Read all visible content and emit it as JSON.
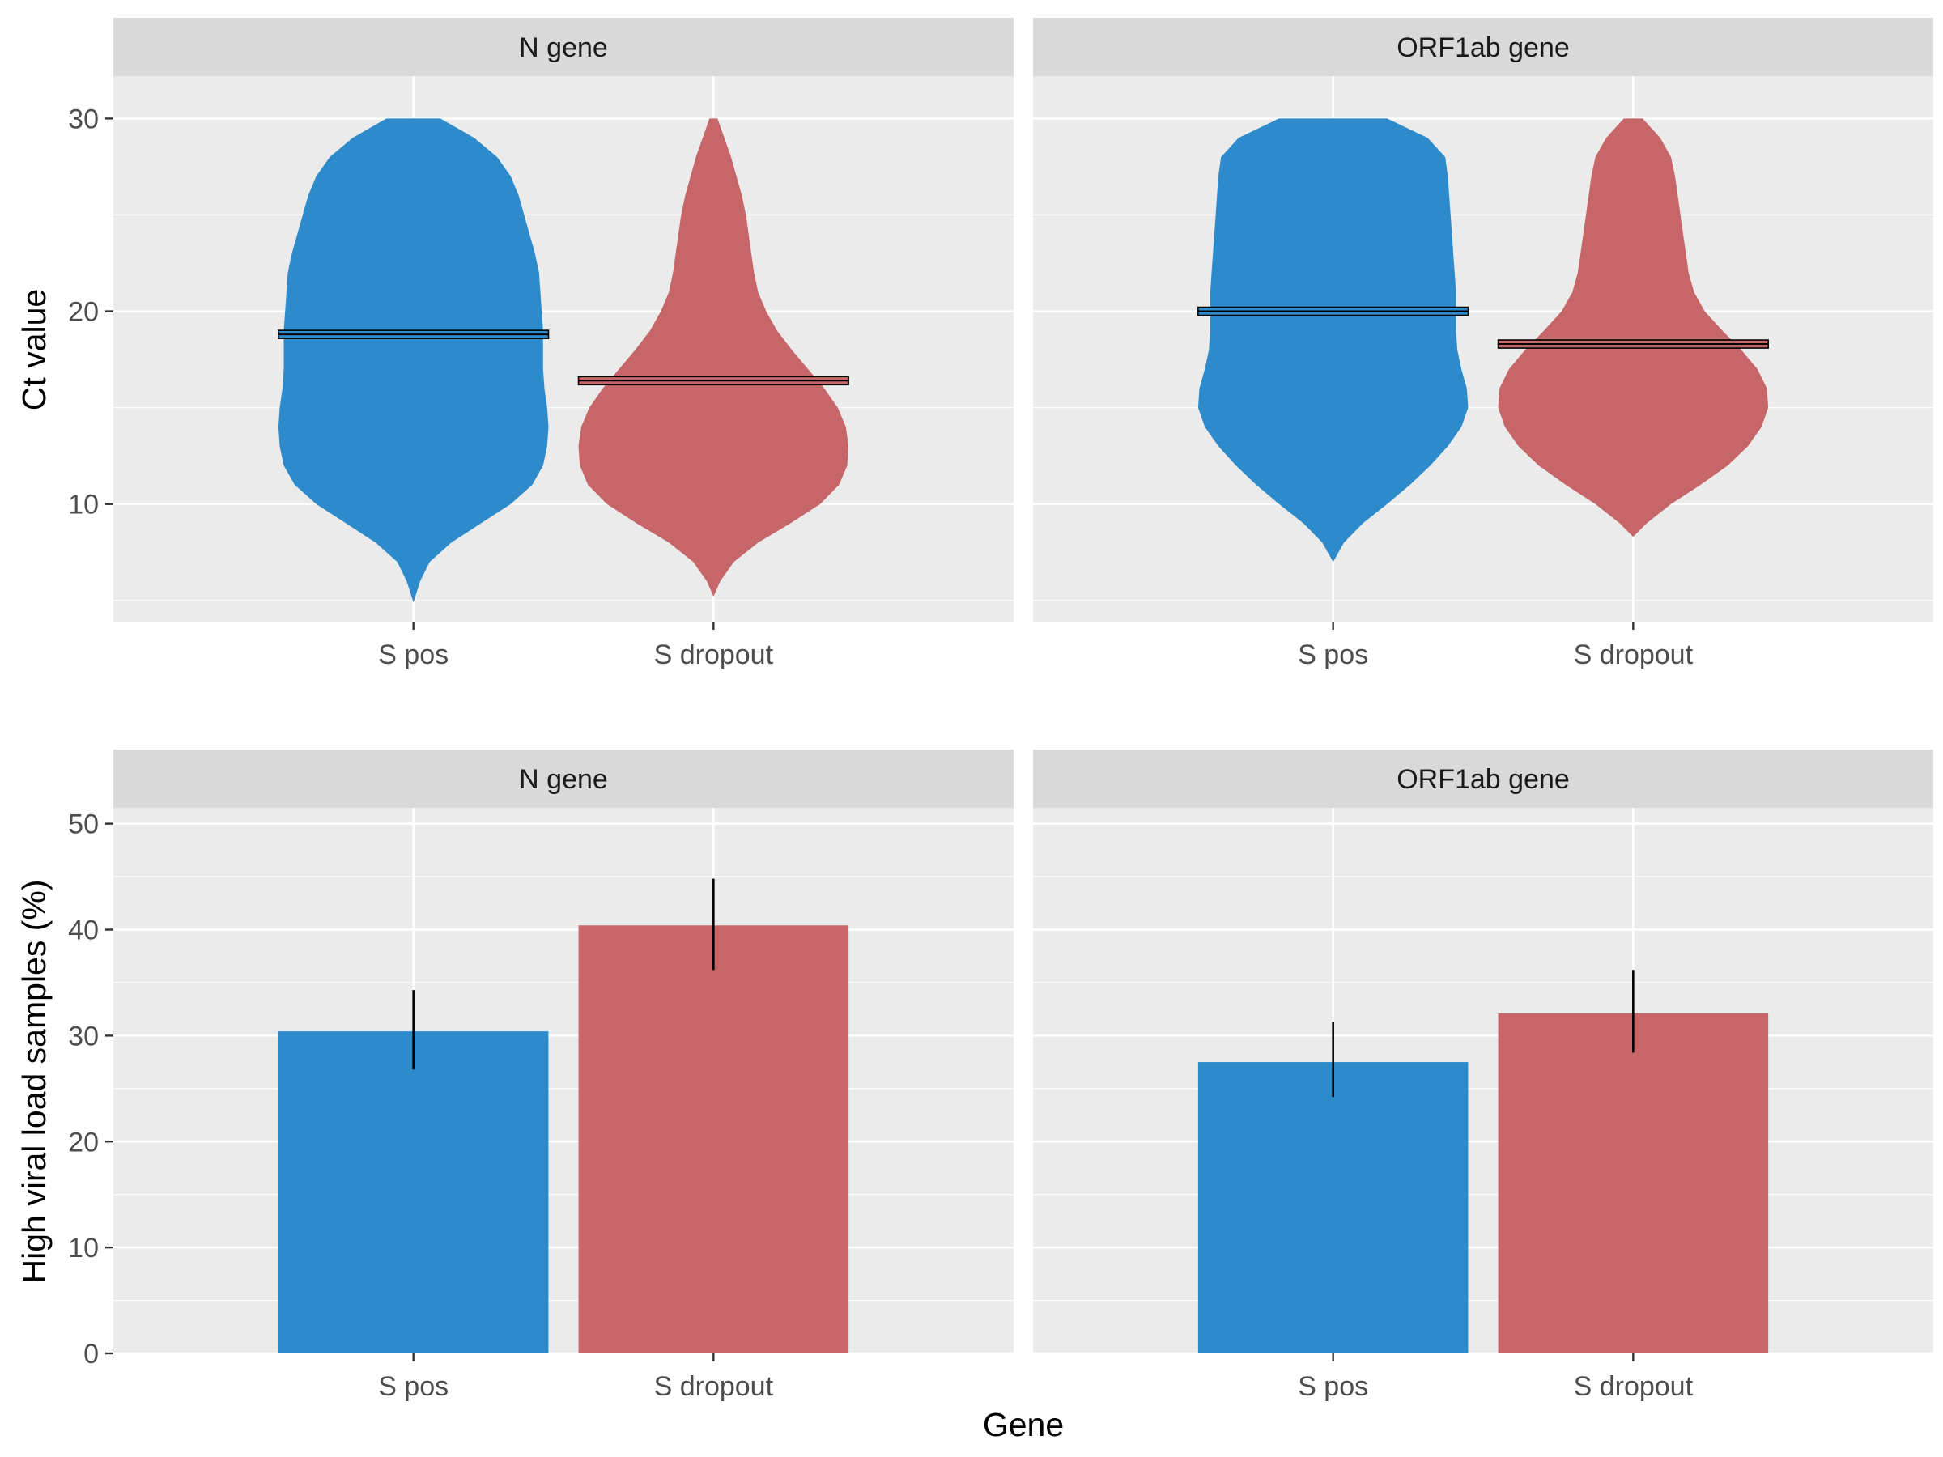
{
  "axes": {
    "x_title": "Gene",
    "top_y_title": "Ct value",
    "bottom_y_title": "High viral load samples (%)"
  },
  "colors": {
    "S pos": "#2e8bcb",
    "S dropout": "#c66668",
    "panel_bg": "#ebebeb",
    "strip_bg": "#d9d9d9",
    "gridline": "#ffffff"
  },
  "chart_data": [
    {
      "type": "violin",
      "facets": [
        "N gene",
        "ORF1ab gene"
      ],
      "categories": [
        "S pos",
        "S dropout"
      ],
      "ylabel": "Ct value",
      "xlabel": "",
      "ylim": [
        3.9,
        32.2
      ],
      "yticks": [
        10,
        20,
        30
      ],
      "grid": true,
      "panels": [
        {
          "facet": "N gene",
          "violins": [
            {
              "category": "S pos",
              "median": 18.8,
              "profile": [
                [
                  4.9,
                  0
                ],
                [
                  6,
                  0.05
                ],
                [
                  7,
                  0.12
                ],
                [
                  8,
                  0.28
                ],
                [
                  9,
                  0.5
                ],
                [
                  10,
                  0.72
                ],
                [
                  11,
                  0.88
                ],
                [
                  12,
                  0.96
                ],
                [
                  13,
                  0.99
                ],
                [
                  14,
                  1.0
                ],
                [
                  15,
                  0.99
                ],
                [
                  16,
                  0.97
                ],
                [
                  17,
                  0.96
                ],
                [
                  18,
                  0.96
                ],
                [
                  19,
                  0.96
                ],
                [
                  20,
                  0.95
                ],
                [
                  21,
                  0.94
                ],
                [
                  22,
                  0.93
                ],
                [
                  23,
                  0.9
                ],
                [
                  24,
                  0.86
                ],
                [
                  25,
                  0.82
                ],
                [
                  26,
                  0.78
                ],
                [
                  27,
                  0.72
                ],
                [
                  28,
                  0.62
                ],
                [
                  29,
                  0.45
                ],
                [
                  30,
                  0.2
                ]
              ]
            },
            {
              "category": "S dropout",
              "median": 16.4,
              "profile": [
                [
                  5.2,
                  0
                ],
                [
                  6,
                  0.05
                ],
                [
                  7,
                  0.15
                ],
                [
                  8,
                  0.33
                ],
                [
                  9,
                  0.57
                ],
                [
                  10,
                  0.79
                ],
                [
                  11,
                  0.93
                ],
                [
                  12,
                  0.99
                ],
                [
                  13,
                  1.0
                ],
                [
                  14,
                  0.98
                ],
                [
                  15,
                  0.92
                ],
                [
                  16,
                  0.82
                ],
                [
                  17,
                  0.7
                ],
                [
                  18,
                  0.58
                ],
                [
                  19,
                  0.47
                ],
                [
                  20,
                  0.39
                ],
                [
                  21,
                  0.33
                ],
                [
                  22,
                  0.3
                ],
                [
                  23,
                  0.28
                ],
                [
                  24,
                  0.26
                ],
                [
                  25,
                  0.24
                ],
                [
                  26,
                  0.21
                ],
                [
                  27,
                  0.17
                ],
                [
                  28,
                  0.13
                ],
                [
                  29,
                  0.08
                ],
                [
                  30,
                  0.03
                ]
              ]
            }
          ]
        },
        {
          "facet": "ORF1ab gene",
          "violins": [
            {
              "category": "S pos",
              "median": 20.0,
              "profile": [
                [
                  7,
                  0
                ],
                [
                  8,
                  0.08
                ],
                [
                  9,
                  0.22
                ],
                [
                  10,
                  0.4
                ],
                [
                  11,
                  0.57
                ],
                [
                  12,
                  0.72
                ],
                [
                  13,
                  0.85
                ],
                [
                  14,
                  0.95
                ],
                [
                  15,
                  1.0
                ],
                [
                  16,
                  0.99
                ],
                [
                  17,
                  0.95
                ],
                [
                  18,
                  0.92
                ],
                [
                  19,
                  0.91
                ],
                [
                  20,
                  0.91
                ],
                [
                  21,
                  0.91
                ],
                [
                  22,
                  0.9
                ],
                [
                  23,
                  0.89
                ],
                [
                  24,
                  0.88
                ],
                [
                  25,
                  0.87
                ],
                [
                  26,
                  0.86
                ],
                [
                  27,
                  0.85
                ],
                [
                  28,
                  0.83
                ],
                [
                  29,
                  0.7
                ],
                [
                  30,
                  0.4
                ]
              ]
            },
            {
              "category": "S dropout",
              "median": 18.3,
              "profile": [
                [
                  8.3,
                  0
                ],
                [
                  9,
                  0.1
                ],
                [
                  10,
                  0.28
                ],
                [
                  11,
                  0.5
                ],
                [
                  12,
                  0.7
                ],
                [
                  13,
                  0.85
                ],
                [
                  14,
                  0.95
                ],
                [
                  15,
                  1.0
                ],
                [
                  16,
                  0.99
                ],
                [
                  17,
                  0.92
                ],
                [
                  18,
                  0.8
                ],
                [
                  19,
                  0.66
                ],
                [
                  20,
                  0.53
                ],
                [
                  21,
                  0.45
                ],
                [
                  22,
                  0.41
                ],
                [
                  23,
                  0.39
                ],
                [
                  24,
                  0.37
                ],
                [
                  25,
                  0.35
                ],
                [
                  26,
                  0.33
                ],
                [
                  27,
                  0.31
                ],
                [
                  28,
                  0.28
                ],
                [
                  29,
                  0.2
                ],
                [
                  30,
                  0.07
                ]
              ]
            }
          ]
        }
      ]
    },
    {
      "type": "bar",
      "facets": [
        "N gene",
        "ORF1ab gene"
      ],
      "categories": [
        "S pos",
        "S dropout"
      ],
      "ylabel": "High viral load samples (%)",
      "xlabel": "Gene",
      "ylim": [
        0,
        51.5
      ],
      "yticks": [
        0,
        10,
        20,
        30,
        40,
        50
      ],
      "grid": true,
      "panels": [
        {
          "facet": "N gene",
          "values": [
            30.4,
            40.4
          ],
          "error_low": [
            26.8,
            36.2
          ],
          "error_high": [
            34.3,
            44.8
          ]
        },
        {
          "facet": "ORF1ab gene",
          "values": [
            27.5,
            32.1
          ],
          "error_low": [
            24.2,
            28.4
          ],
          "error_high": [
            31.3,
            36.2
          ]
        }
      ]
    }
  ]
}
